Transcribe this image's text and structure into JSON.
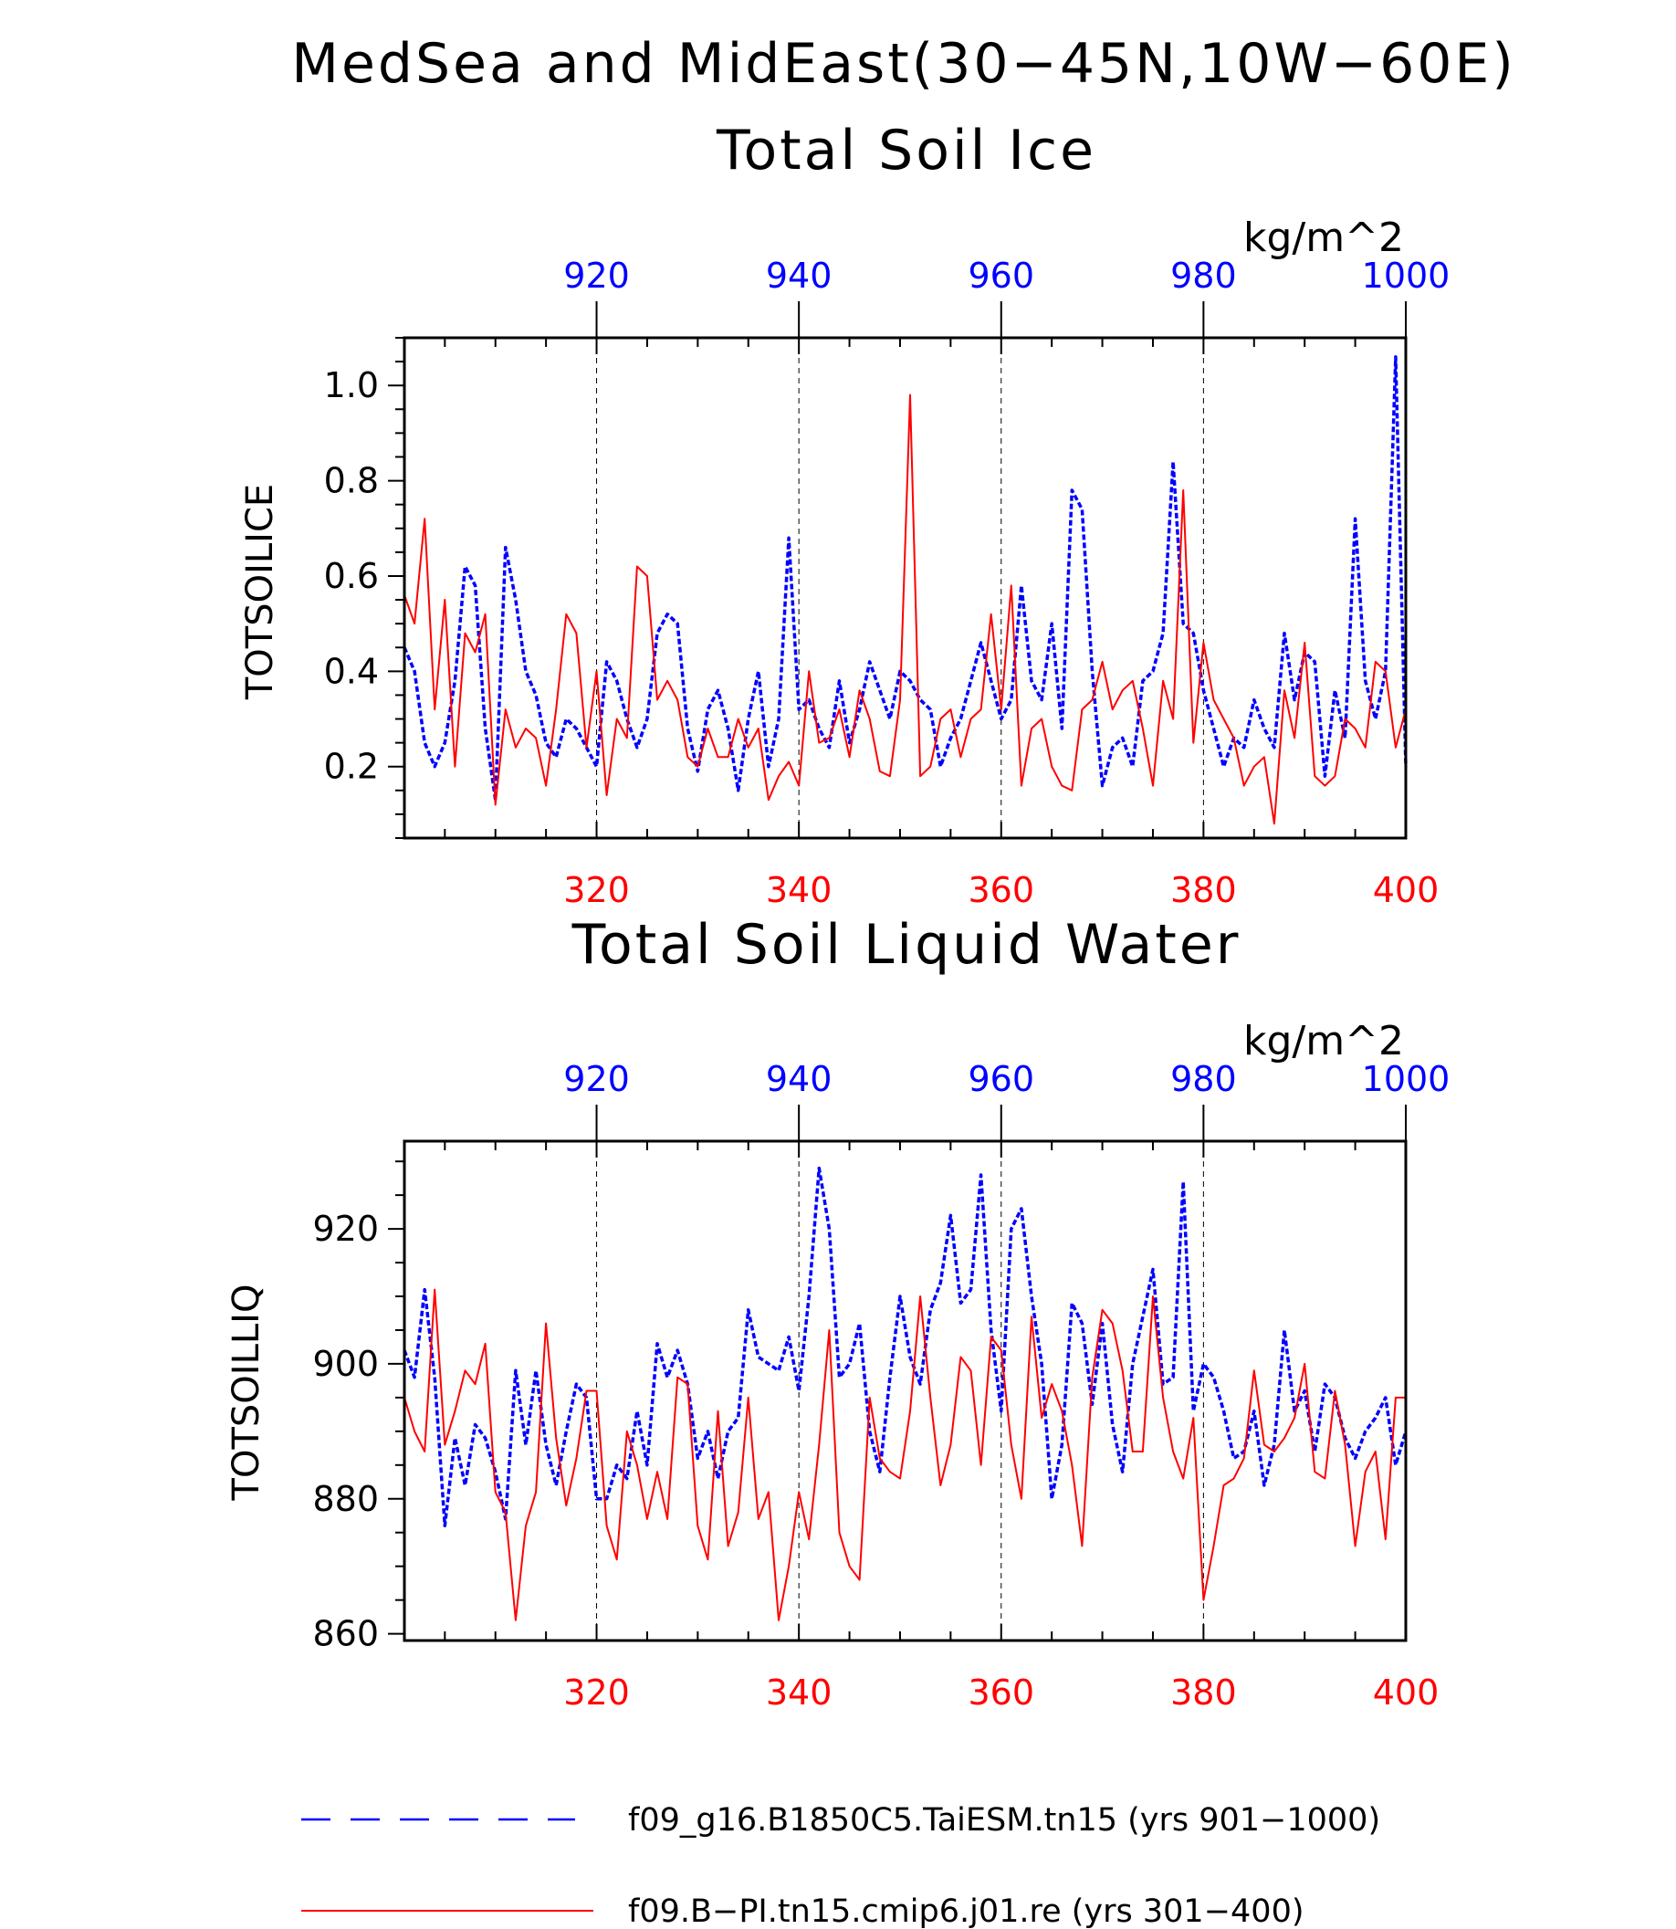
{
  "header": {
    "title_line1": "MedSea and MidEast(30−45N,10W−60E)",
    "title_line2": "Total Soil Ice"
  },
  "colors": {
    "blue": "#0000ff",
    "red": "#ff0000",
    "axis": "#000000"
  },
  "legend": {
    "position": "bottom",
    "entries": [
      {
        "label": "f09_g16.B1850C5.TaiESM.tn15 (yrs 901−1000)",
        "color": "#0000ff",
        "style": "dashed"
      },
      {
        "label": "f09.B−PI.tn15.cmip6.j01.re (yrs 301−400)",
        "color": "#ff0000",
        "style": "solid"
      }
    ]
  },
  "chart_data": [
    {
      "type": "line",
      "title": "",
      "units": "kg/m^2",
      "ylabel": "TOTSOILICE",
      "ylim": [
        0.05,
        1.1
      ],
      "yticks": [
        0.2,
        0.4,
        0.6,
        0.8,
        1.0
      ],
      "ytick_labels": [
        "0.2",
        "0.4",
        "0.6",
        "0.8",
        "1.0"
      ],
      "bottom_axis": {
        "range": [
          301,
          400
        ],
        "ticks": [
          320,
          340,
          360,
          380,
          400
        ],
        "tick_labels": [
          "320",
          "340",
          "360",
          "380",
          "400"
        ],
        "color": "#ff0000"
      },
      "top_axis": {
        "range": [
          901,
          1000
        ],
        "ticks": [
          920,
          940,
          960,
          980,
          1000
        ],
        "tick_labels": [
          "920",
          "940",
          "960",
          "980",
          "1000"
        ],
        "color": "#0000ff"
      },
      "gridlines": "vertical dashed at major ticks",
      "series": [
        {
          "axis": "top",
          "color": "#0000ff",
          "style": "dashed",
          "x_start": 901,
          "values": [
            0.45,
            0.4,
            0.25,
            0.2,
            0.25,
            0.38,
            0.62,
            0.58,
            0.28,
            0.13,
            0.66,
            0.55,
            0.4,
            0.35,
            0.25,
            0.22,
            0.3,
            0.28,
            0.24,
            0.2,
            0.42,
            0.38,
            0.3,
            0.24,
            0.3,
            0.48,
            0.52,
            0.5,
            0.28,
            0.19,
            0.32,
            0.36,
            0.28,
            0.15,
            0.3,
            0.4,
            0.2,
            0.3,
            0.68,
            0.32,
            0.34,
            0.28,
            0.24,
            0.38,
            0.25,
            0.32,
            0.42,
            0.36,
            0.3,
            0.4,
            0.38,
            0.34,
            0.32,
            0.2,
            0.26,
            0.3,
            0.38,
            0.46,
            0.38,
            0.3,
            0.34,
            0.58,
            0.38,
            0.34,
            0.5,
            0.28,
            0.78,
            0.74,
            0.4,
            0.16,
            0.24,
            0.26,
            0.2,
            0.38,
            0.4,
            0.48,
            0.84,
            0.5,
            0.48,
            0.36,
            0.28,
            0.2,
            0.26,
            0.24,
            0.34,
            0.28,
            0.24,
            0.48,
            0.34,
            0.44,
            0.42,
            0.18,
            0.36,
            0.26,
            0.72,
            0.38,
            0.3,
            0.4,
            1.06,
            0.2
          ]
        },
        {
          "axis": "bottom",
          "color": "#ff0000",
          "style": "solid",
          "x_start": 301,
          "values": [
            0.56,
            0.5,
            0.72,
            0.32,
            0.55,
            0.2,
            0.48,
            0.44,
            0.52,
            0.12,
            0.32,
            0.24,
            0.28,
            0.26,
            0.16,
            0.32,
            0.52,
            0.48,
            0.24,
            0.4,
            0.14,
            0.3,
            0.26,
            0.62,
            0.6,
            0.34,
            0.38,
            0.34,
            0.22,
            0.2,
            0.28,
            0.22,
            0.22,
            0.3,
            0.24,
            0.28,
            0.13,
            0.18,
            0.21,
            0.16,
            0.4,
            0.25,
            0.26,
            0.32,
            0.22,
            0.36,
            0.3,
            0.19,
            0.18,
            0.34,
            0.98,
            0.18,
            0.2,
            0.3,
            0.32,
            0.22,
            0.3,
            0.32,
            0.52,
            0.32,
            0.58,
            0.16,
            0.28,
            0.3,
            0.2,
            0.16,
            0.15,
            0.32,
            0.34,
            0.42,
            0.32,
            0.36,
            0.38,
            0.28,
            0.16,
            0.38,
            0.3,
            0.78,
            0.25,
            0.46,
            0.34,
            0.3,
            0.26,
            0.16,
            0.2,
            0.22,
            0.08,
            0.36,
            0.26,
            0.46,
            0.18,
            0.16,
            0.18,
            0.3,
            0.28,
            0.24,
            0.42,
            0.4,
            0.24,
            0.32
          ]
        }
      ]
    },
    {
      "type": "line",
      "title": "Total Soil Liquid Water",
      "units": "kg/m^2",
      "ylabel": "TOTSOILLIQ",
      "ylim": [
        859,
        933
      ],
      "yticks": [
        860,
        880,
        900,
        920
      ],
      "ytick_labels": [
        "860",
        "880",
        "900",
        "920"
      ],
      "bottom_axis": {
        "range": [
          301,
          400
        ],
        "ticks": [
          320,
          340,
          360,
          380,
          400
        ],
        "tick_labels": [
          "320",
          "340",
          "360",
          "380",
          "400"
        ],
        "color": "#ff0000"
      },
      "top_axis": {
        "range": [
          901,
          1000
        ],
        "ticks": [
          920,
          940,
          960,
          980,
          1000
        ],
        "tick_labels": [
          "920",
          "940",
          "960",
          "980",
          "1000"
        ],
        "color": "#0000ff"
      },
      "gridlines": "vertical dashed at major ticks",
      "series": [
        {
          "axis": "top",
          "color": "#0000ff",
          "style": "dashed",
          "x_start": 901,
          "values": [
            902,
            898,
            911,
            898,
            876,
            889,
            882,
            891,
            889,
            884,
            877,
            899,
            888,
            899,
            888,
            882,
            890,
            897,
            895,
            880,
            880,
            885,
            883,
            893,
            885,
            903,
            898,
            902,
            897,
            886,
            890,
            883,
            890,
            892,
            908,
            901,
            900,
            899,
            904,
            896,
            910,
            929,
            920,
            898,
            900,
            906,
            890,
            884,
            898,
            910,
            901,
            897,
            908,
            912,
            922,
            909,
            911,
            928,
            905,
            893,
            920,
            923,
            910,
            900,
            880,
            888,
            909,
            906,
            894,
            906,
            891,
            884,
            900,
            907,
            914,
            897,
            898,
            927,
            893,
            900,
            898,
            893,
            886,
            887,
            893,
            882,
            888,
            905,
            893,
            896,
            887,
            897,
            895,
            889,
            886,
            890,
            892,
            895,
            885,
            890
          ]
        },
        {
          "axis": "bottom",
          "color": "#ff0000",
          "style": "solid",
          "x_start": 301,
          "values": [
            895,
            890,
            887,
            911,
            888,
            893,
            899,
            897,
            903,
            881,
            878,
            862,
            876,
            881,
            906,
            889,
            879,
            886,
            896,
            896,
            876,
            871,
            890,
            885,
            877,
            884,
            877,
            898,
            897,
            876,
            871,
            893,
            873,
            878,
            895,
            877,
            881,
            862,
            870,
            881,
            874,
            888,
            905,
            875,
            870,
            868,
            895,
            886,
            884,
            883,
            893,
            910,
            895,
            882,
            888,
            901,
            899,
            885,
            904,
            902,
            888,
            880,
            907,
            892,
            897,
            893,
            885,
            873,
            898,
            908,
            906,
            899,
            887,
            887,
            910,
            895,
            887,
            883,
            892,
            865,
            873,
            882,
            883,
            886,
            899,
            888,
            887,
            889,
            892,
            900,
            884,
            883,
            896,
            888,
            873,
            884,
            887,
            874,
            895,
            895
          ]
        }
      ]
    }
  ]
}
